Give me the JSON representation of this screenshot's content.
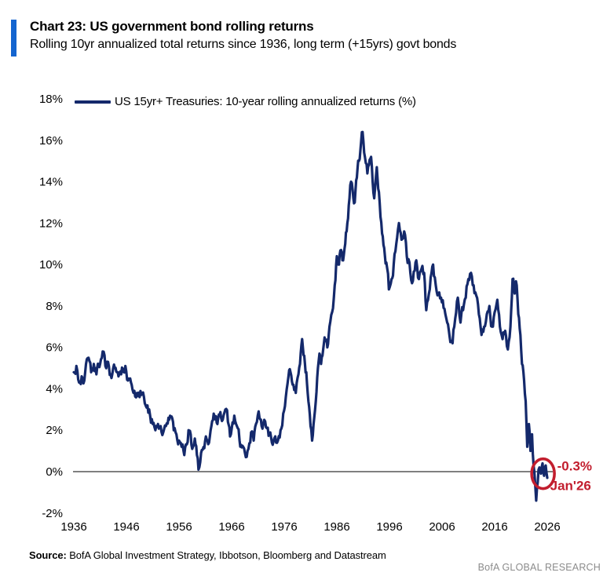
{
  "header": {
    "title": "Chart 23: US government bond rolling returns",
    "subtitle": "Rolling 10yr annualized total returns since 1936, long term (+15yrs) govt bonds"
  },
  "legend": {
    "label": "US 15yr+ Treasuries: 10-year rolling annualized returns (%)"
  },
  "footer": {
    "source_label": "Source:",
    "source_text": " BofA Global Investment Strategy, Ibbotson, Bloomberg and Datastream",
    "brand": "BofA GLOBAL RESEARCH"
  },
  "colors": {
    "accent_blue": "#1465d0",
    "line_navy": "#14296b",
    "annotation_red": "#c21e2e",
    "zero_line_gray": "#7f7f7f",
    "brand_gray": "#8c8c8c"
  },
  "chart_data": {
    "type": "line",
    "title": "US 15yr+ Treasuries: 10-year rolling annualized returns (%)",
    "xlabel": "",
    "ylabel": "",
    "legend_position": "top-left",
    "grid": false,
    "zero_line": true,
    "ylim": [
      -2,
      18
    ],
    "xlim": [
      1936,
      2026
    ],
    "yticks": [
      18,
      16,
      14,
      12,
      10,
      8,
      6,
      4,
      2,
      0,
      -2
    ],
    "ytick_labels": [
      "18%",
      "16%",
      "14%",
      "12%",
      "10%",
      "8%",
      "6%",
      "4%",
      "2%",
      "0%",
      "-2%"
    ],
    "xticks": [
      1936,
      1946,
      1956,
      1966,
      1976,
      1986,
      1996,
      2006,
      2016,
      2026
    ],
    "xtick_labels": [
      "1936",
      "1946",
      "1956",
      "1966",
      "1976",
      "1986",
      "1996",
      "2006",
      "2016",
      "2026"
    ],
    "annotation": {
      "value_label": "-0.3%",
      "date_label": "Jan'26",
      "x": 2025.2,
      "y": -0.1
    },
    "series": [
      {
        "name": "US 15yr+ Treasuries: 10-year rolling annualized returns (%)",
        "points": [
          [
            1936.0,
            4.8
          ],
          [
            1936.5,
            5.1
          ],
          [
            1937.0,
            4.3
          ],
          [
            1937.5,
            4.6
          ],
          [
            1938.0,
            4.4
          ],
          [
            1938.8,
            5.5
          ],
          [
            1939.3,
            4.8
          ],
          [
            1939.8,
            5.2
          ],
          [
            1940.3,
            4.7
          ],
          [
            1941.0,
            5.2
          ],
          [
            1941.5,
            5.8
          ],
          [
            1942.0,
            5.1
          ],
          [
            1942.5,
            5.3
          ],
          [
            1943.0,
            4.7
          ],
          [
            1943.8,
            5.0
          ],
          [
            1944.5,
            4.6
          ],
          [
            1945.0,
            4.7
          ],
          [
            1945.8,
            5.1
          ],
          [
            1946.3,
            4.4
          ],
          [
            1947.0,
            4.2
          ],
          [
            1947.5,
            3.9
          ],
          [
            1948.0,
            3.8
          ],
          [
            1948.5,
            3.6
          ],
          [
            1949.0,
            3.8
          ],
          [
            1949.5,
            3.3
          ],
          [
            1950.0,
            3.2
          ],
          [
            1950.5,
            2.7
          ],
          [
            1951.0,
            2.3
          ],
          [
            1951.5,
            2.0
          ],
          [
            1952.0,
            2.3
          ],
          [
            1952.5,
            2.2
          ],
          [
            1953.0,
            1.9
          ],
          [
            1953.5,
            2.2
          ],
          [
            1954.0,
            2.6
          ],
          [
            1954.3,
            2.7
          ],
          [
            1955.0,
            2.0
          ],
          [
            1955.5,
            1.8
          ],
          [
            1956.0,
            1.5
          ],
          [
            1956.5,
            1.2
          ],
          [
            1957.0,
            0.8
          ],
          [
            1957.8,
            2.0
          ],
          [
            1958.5,
            1.1
          ],
          [
            1959.0,
            1.6
          ],
          [
            1959.4,
            0.8
          ],
          [
            1959.7,
            0.1
          ],
          [
            1960.2,
            0.9
          ],
          [
            1961.1,
            1.7
          ],
          [
            1961.7,
            1.4
          ],
          [
            1962.6,
            2.8
          ],
          [
            1963.3,
            2.3
          ],
          [
            1964.0,
            2.6
          ],
          [
            1964.8,
            3.0
          ],
          [
            1965.3,
            2.4
          ],
          [
            1965.7,
            1.7
          ],
          [
            1966.5,
            2.7
          ],
          [
            1967.0,
            2.2
          ],
          [
            1967.5,
            1.5
          ],
          [
            1968.2,
            1.2
          ],
          [
            1968.7,
            0.7
          ],
          [
            1969.2,
            1.1
          ],
          [
            1969.7,
            1.9
          ],
          [
            1970.2,
            1.5
          ],
          [
            1970.8,
            2.4
          ],
          [
            1971.3,
            2.6
          ],
          [
            1971.7,
            2.2
          ],
          [
            1972.2,
            2.5
          ],
          [
            1972.7,
            2.1
          ],
          [
            1973.2,
            1.8
          ],
          [
            1973.8,
            1.3
          ],
          [
            1974.3,
            1.7
          ],
          [
            1974.8,
            1.5
          ],
          [
            1975.3,
            2.0
          ],
          [
            1975.8,
            2.8
          ],
          [
            1976.3,
            3.6
          ],
          [
            1976.8,
            4.6
          ],
          [
            1977.2,
            4.8
          ],
          [
            1977.6,
            4.2
          ],
          [
            1978.2,
            3.8
          ],
          [
            1978.7,
            4.7
          ],
          [
            1979.0,
            5.2
          ],
          [
            1979.4,
            6.4
          ],
          [
            1979.8,
            5.6
          ],
          [
            1980.2,
            4.8
          ],
          [
            1980.6,
            3.4
          ],
          [
            1981.0,
            2.2
          ],
          [
            1981.3,
            1.5
          ],
          [
            1981.7,
            2.6
          ],
          [
            1982.0,
            3.4
          ],
          [
            1982.4,
            5.0
          ],
          [
            1982.7,
            5.7
          ],
          [
            1983.0,
            5.2
          ],
          [
            1983.4,
            5.9
          ],
          [
            1983.8,
            6.3
          ],
          [
            1984.2,
            6.0
          ],
          [
            1984.6,
            7.0
          ],
          [
            1985.1,
            7.7
          ],
          [
            1985.6,
            9.0
          ],
          [
            1986.0,
            10.4
          ],
          [
            1986.4,
            10.0
          ],
          [
            1986.8,
            10.7
          ],
          [
            1987.2,
            10.2
          ],
          [
            1987.6,
            11.0
          ],
          [
            1988.0,
            12.0
          ],
          [
            1988.4,
            13.2
          ],
          [
            1988.7,
            14.0
          ],
          [
            1989.0,
            13.6
          ],
          [
            1989.4,
            13.0
          ],
          [
            1989.8,
            14.2
          ],
          [
            1990.2,
            15.0
          ],
          [
            1990.5,
            15.6
          ],
          [
            1990.9,
            16.4
          ],
          [
            1991.2,
            15.4
          ],
          [
            1991.5,
            14.9
          ],
          [
            1991.8,
            14.4
          ],
          [
            1992.1,
            14.8
          ],
          [
            1992.5,
            15.2
          ],
          [
            1992.8,
            14.0
          ],
          [
            1993.1,
            13.2
          ],
          [
            1993.6,
            14.7
          ],
          [
            1994.0,
            13.5
          ],
          [
            1994.6,
            11.5
          ],
          [
            1995.0,
            10.8
          ],
          [
            1995.4,
            10.1
          ],
          [
            1995.9,
            8.8
          ],
          [
            1996.4,
            9.3
          ],
          [
            1996.8,
            10.0
          ],
          [
            1997.3,
            11.0
          ],
          [
            1997.8,
            12.0
          ],
          [
            1998.3,
            11.2
          ],
          [
            1998.8,
            11.6
          ],
          [
            1999.3,
            10.4
          ],
          [
            1999.8,
            10.1
          ],
          [
            2000.3,
            9.1
          ],
          [
            2000.8,
            9.7
          ],
          [
            2001.1,
            10.2
          ],
          [
            2001.6,
            9.3
          ],
          [
            2002.1,
            9.8
          ],
          [
            2002.6,
            9.6
          ],
          [
            2003.0,
            7.8
          ],
          [
            2003.5,
            8.6
          ],
          [
            2004.0,
            9.6
          ],
          [
            2004.3,
            10.0
          ],
          [
            2004.8,
            9.0
          ],
          [
            2005.3,
            8.6
          ],
          [
            2005.8,
            8.4
          ],
          [
            2006.3,
            7.9
          ],
          [
            2006.8,
            7.4
          ],
          [
            2007.3,
            6.8
          ],
          [
            2008.0,
            6.2
          ],
          [
            2008.5,
            7.4
          ],
          [
            2009.0,
            8.4
          ],
          [
            2009.5,
            7.2
          ],
          [
            2010.0,
            7.8
          ],
          [
            2010.5,
            8.4
          ],
          [
            2011.0,
            9.3
          ],
          [
            2011.5,
            9.6
          ],
          [
            2012.0,
            9.0
          ],
          [
            2012.5,
            8.5
          ],
          [
            2013.0,
            7.6
          ],
          [
            2013.5,
            6.6
          ],
          [
            2014.0,
            7.0
          ],
          [
            2014.5,
            7.6
          ],
          [
            2015.0,
            8.0
          ],
          [
            2015.5,
            7.0
          ],
          [
            2016.0,
            7.7
          ],
          [
            2016.5,
            8.3
          ],
          [
            2017.0,
            7.0
          ],
          [
            2017.5,
            6.4
          ],
          [
            2018.0,
            6.8
          ],
          [
            2018.5,
            5.9
          ],
          [
            2019.0,
            7.0
          ],
          [
            2019.4,
            9.3
          ],
          [
            2019.8,
            8.6
          ],
          [
            2020.2,
            9.0
          ],
          [
            2020.5,
            7.6
          ],
          [
            2020.9,
            6.6
          ],
          [
            2021.2,
            5.2
          ],
          [
            2021.6,
            4.4
          ],
          [
            2021.9,
            3.4
          ],
          [
            2022.2,
            1.2
          ],
          [
            2022.5,
            2.3
          ],
          [
            2022.8,
            1.0
          ],
          [
            2023.1,
            1.8
          ],
          [
            2023.4,
            0.3
          ],
          [
            2023.7,
            -0.6
          ],
          [
            2023.9,
            -1.4
          ],
          [
            2024.2,
            -0.5
          ],
          [
            2024.5,
            0.2
          ],
          [
            2024.8,
            -0.1
          ],
          [
            2025.1,
            0.4
          ],
          [
            2025.4,
            -0.2
          ],
          [
            2025.7,
            0.3
          ],
          [
            2026.0,
            -0.3
          ]
        ]
      }
    ]
  }
}
